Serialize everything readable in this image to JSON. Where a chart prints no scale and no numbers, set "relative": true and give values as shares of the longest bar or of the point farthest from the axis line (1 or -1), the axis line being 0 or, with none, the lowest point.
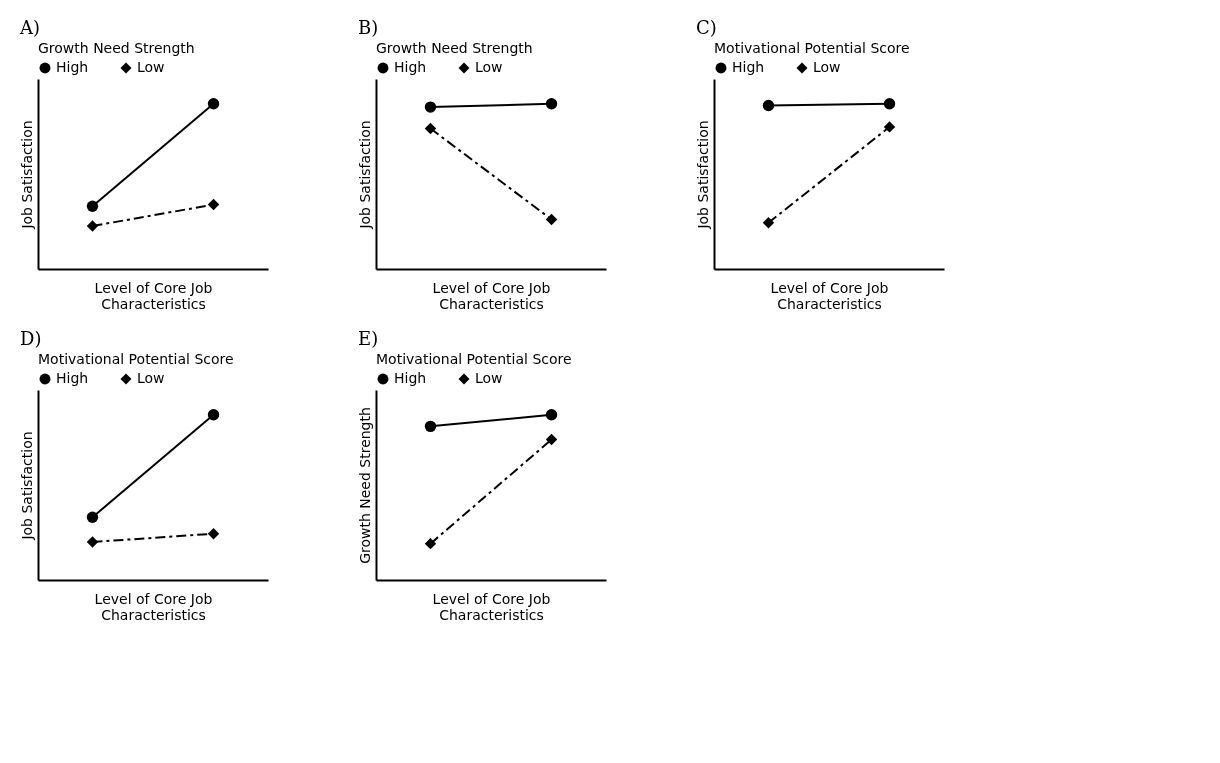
{
  "chart_data": [
    {
      "type": "line",
      "title": "A)",
      "legend_title": "Growth Need Strength",
      "xlabel": "Level of Core Job Characteristics",
      "ylabel": "Job Satisfaction",
      "categories": [
        null,
        null
      ],
      "relative": true,
      "legend": "top",
      "series": [
        {
          "name": "High",
          "color": "#000000",
          "values": [
            0.38,
            1
          ],
          "line_style": "solid",
          "marker": "circle"
        },
        {
          "name": "Low",
          "color": "#000000",
          "values": [
            0.26,
            0.39
          ],
          "line_style": "dashed",
          "marker": "diamond"
        }
      ]
    },
    {
      "type": "line",
      "title": "B)",
      "legend_title": "Growth Need Strength",
      "xlabel": "Level of Core Job Characteristics",
      "ylabel": "Job Satisfaction",
      "categories": [
        null,
        null
      ],
      "relative": true,
      "legend": "top",
      "series": [
        {
          "name": "High",
          "color": "#000000",
          "values": [
            0.98,
            1
          ],
          "line_style": "solid",
          "marker": "circle"
        },
        {
          "name": "Low",
          "color": "#000000",
          "values": [
            0.85,
            0.3
          ],
          "line_style": "dashed",
          "marker": "diamond"
        }
      ]
    },
    {
      "type": "line",
      "title": "C)",
      "legend_title": "Motivational Potential Score",
      "xlabel": "Level of Core Job Characteristics",
      "ylabel": "Job Satisfaction",
      "categories": [
        null,
        null
      ],
      "relative": true,
      "legend": "top",
      "series": [
        {
          "name": "High",
          "color": "#000000",
          "values": [
            0.99,
            1
          ],
          "line_style": "solid",
          "marker": "circle"
        },
        {
          "name": "Low",
          "color": "#000000",
          "values": [
            0.28,
            0.86
          ],
          "line_style": "dashed",
          "marker": "diamond"
        }
      ]
    },
    {
      "type": "line",
      "title": "D)",
      "legend_title": "Motivational Potential Score",
      "xlabel": "Level of Core Job Characteristics",
      "ylabel": "Job Satisfaction",
      "categories": [
        null,
        null
      ],
      "relative": true,
      "legend": "top",
      "series": [
        {
          "name": "High",
          "color": "#000000",
          "values": [
            0.38,
            1
          ],
          "line_style": "solid",
          "marker": "circle"
        },
        {
          "name": "Low",
          "color": "#000000",
          "values": [
            0.23,
            0.28
          ],
          "line_style": "dashed",
          "marker": "diamond"
        }
      ]
    },
    {
      "type": "line",
      "title": "E)",
      "legend_title": "Motivational Potential Score",
      "xlabel": "Level of Core Job Characteristics",
      "ylabel": "Growth Need Strength",
      "categories": [
        null,
        null
      ],
      "relative": true,
      "legend": "top",
      "series": [
        {
          "name": "High",
          "color": "#000000",
          "values": [
            0.93,
            1
          ],
          "line_style": "solid",
          "marker": "circle"
        },
        {
          "name": "Low",
          "color": "#000000",
          "values": [
            0.22,
            0.85
          ],
          "line_style": "dashed",
          "marker": "diamond"
        }
      ]
    }
  ]
}
